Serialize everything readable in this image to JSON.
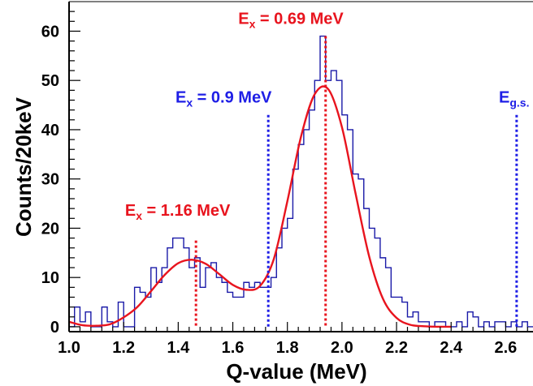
{
  "chart_data": {
    "type": "line",
    "title": "",
    "xlabel": "Q-value (MeV)",
    "ylabel": "Counts/20keV",
    "xlim": [
      1.0,
      2.7
    ],
    "ylim": [
      -1,
      66
    ],
    "x_ticks": [
      "1.0",
      "1.2",
      "1.4",
      "1.6",
      "1.8",
      "2.0",
      "2.2",
      "2.4",
      "2.6"
    ],
    "x_tick_values": [
      1.0,
      1.2,
      1.4,
      1.6,
      1.8,
      2.0,
      2.2,
      2.4,
      2.6
    ],
    "y_ticks": [
      "0",
      "10",
      "20",
      "30",
      "40",
      "50",
      "60"
    ],
    "y_tick_values": [
      0,
      10,
      20,
      30,
      40,
      50,
      60
    ],
    "grid": false,
    "colors": {
      "histogram": "#1a1aa8",
      "fit": "#e8141e",
      "red_marker": "#e8141e",
      "blue_marker": "#1e1ee6"
    },
    "series": [
      {
        "style": "step-histogram",
        "bin_width": 0.02,
        "x": [
          1.0,
          1.02,
          1.04,
          1.06,
          1.08,
          1.1,
          1.12,
          1.14,
          1.16,
          1.18,
          1.2,
          1.22,
          1.24,
          1.26,
          1.28,
          1.3,
          1.32,
          1.34,
          1.36,
          1.38,
          1.4,
          1.42,
          1.44,
          1.46,
          1.48,
          1.5,
          1.52,
          1.54,
          1.56,
          1.58,
          1.6,
          1.62,
          1.64,
          1.66,
          1.68,
          1.7,
          1.72,
          1.74,
          1.76,
          1.78,
          1.8,
          1.82,
          1.84,
          1.86,
          1.88,
          1.9,
          1.92,
          1.94,
          1.96,
          1.98,
          2.0,
          2.02,
          2.04,
          2.06,
          2.08,
          2.1,
          2.12,
          2.14,
          2.16,
          2.18,
          2.2,
          2.22,
          2.24,
          2.26,
          2.28,
          2.3,
          2.32,
          2.34,
          2.36,
          2.38,
          2.4,
          2.42,
          2.44,
          2.46,
          2.48,
          2.5,
          2.52,
          2.54,
          2.56,
          2.58,
          2.6,
          2.62,
          2.64,
          2.66,
          2.68
        ],
        "values": [
          0,
          4,
          1,
          3,
          0,
          0,
          4,
          1,
          0,
          5,
          0,
          0,
          8,
          7,
          6,
          12,
          9,
          12,
          16,
          18,
          18,
          16,
          12,
          14,
          8,
          12,
          13,
          10,
          9,
          7,
          6,
          6,
          9,
          8,
          9,
          8,
          8,
          10,
          16,
          20,
          22,
          32,
          37,
          40,
          44,
          50,
          59,
          50,
          52,
          50,
          43,
          40,
          31,
          30,
          24,
          20,
          18,
          14,
          12,
          6,
          6,
          5,
          2,
          3,
          1,
          1,
          0,
          1,
          1,
          0,
          0,
          1,
          0,
          3,
          2,
          0,
          1,
          0,
          1,
          1,
          0,
          1,
          0,
          1,
          0
        ]
      },
      {
        "style": "fit-curve",
        "x": [
          1.0,
          1.05,
          1.1,
          1.15,
          1.2,
          1.25,
          1.3,
          1.35,
          1.4,
          1.45,
          1.5,
          1.55,
          1.6,
          1.65,
          1.7,
          1.75,
          1.8,
          1.85,
          1.9,
          1.95,
          2.0,
          2.05,
          2.1,
          2.15,
          2.2,
          2.25,
          2.3,
          2.35,
          2.4
        ],
        "values": [
          1.0,
          0.3,
          0.2,
          0.5,
          1.9,
          4.0,
          7.2,
          10.5,
          12.9,
          13.6,
          12.8,
          10.7,
          8.5,
          7.5,
          8.3,
          13.7,
          25.5,
          38.6,
          47.2,
          48.2,
          40.5,
          27.0,
          14.2,
          5.7,
          1.8,
          0.4,
          0.1,
          0,
          0
        ]
      }
    ],
    "annotations": [
      {
        "main": "E",
        "sub": "x",
        "rest": " = 0.69 MeV",
        "x": 1.94,
        "line_top": 59,
        "color": "#e8141e",
        "label_x": 1.62,
        "label_y": 61.5
      },
      {
        "main": "E",
        "sub": "x",
        "rest": " = 0.9 MeV",
        "x": 1.73,
        "line_top": 43,
        "color": "#1e1ee6",
        "label_x": 1.39,
        "label_y": 45.5
      },
      {
        "main": "E",
        "sub": "x",
        "rest": " = 1.16 MeV",
        "x": 1.465,
        "line_top": 17.5,
        "color": "#e8141e",
        "label_x": 1.205,
        "label_y": 22.5
      },
      {
        "main": "E",
        "sub": "g.s.",
        "rest": "",
        "x": 2.64,
        "line_top": 43,
        "color": "#1e1ee6",
        "label_x": 2.575,
        "label_y": 45.5
      }
    ]
  }
}
